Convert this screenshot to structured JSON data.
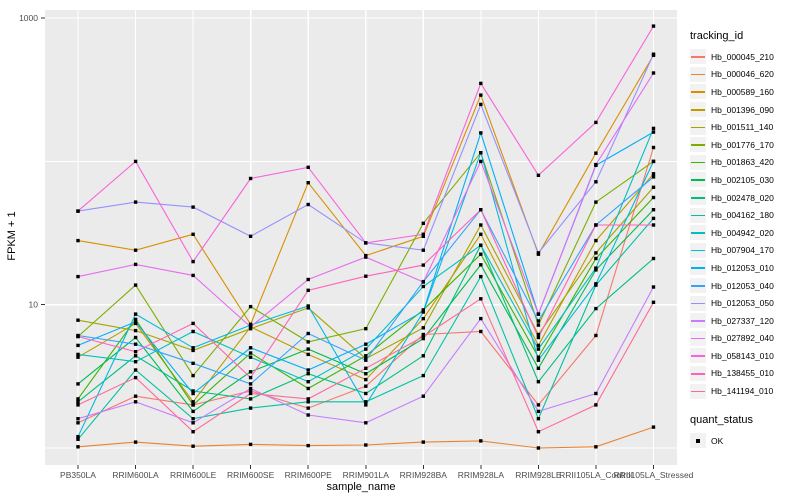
{
  "figure": {
    "y_axis_title": "FPKM + 1",
    "x_axis_title": "sample_name",
    "legend": {
      "tracking_title": "tracking_id",
      "quant_title": "quant_status",
      "quant_items": [
        {
          "label": "OK",
          "marker": "black-square"
        }
      ]
    }
  },
  "chart_data": {
    "type": "line",
    "title": "",
    "xlabel": "sample_name",
    "ylabel": "FPKM + 1",
    "y_scale": "log10",
    "y_tick_labels": [
      "1000",
      "10"
    ],
    "y_tick_values": [
      1000,
      10
    ],
    "y_gridline_values": [
      1000,
      100,
      10,
      1
    ],
    "ylim": [
      0.76,
      1140
    ],
    "grid": "white major gridlines on gray panel",
    "legend_position": "right",
    "point_marker": "small black square (quant_status = OK)",
    "panel_bg": "#EBEBEB",
    "gridline_color": "#FFFFFF",
    "x_categories": [
      "PB350LA",
      "RRIM600LA",
      "RRIM600LE",
      "RRIM600SE",
      "RRIM600PE",
      "RRIM901LA",
      "RRIM928BA",
      "RRIM928LA",
      "RRIM928LE",
      "RRII105LA_Control",
      "RRII105LA_Stressed"
    ],
    "series": [
      {
        "name": "Hb_000045_210",
        "color": "#F8766D",
        "values": [
          1.5,
          2.3,
          2.0,
          2.5,
          1.9,
          2.7,
          6.2,
          6.5,
          2.0,
          6.1,
          125
        ]
      },
      {
        "name": "Hb_000046_620",
        "color": "#EA8331",
        "values": [
          1.02,
          1.1,
          1.03,
          1.06,
          1.04,
          1.05,
          1.1,
          1.12,
          1.0,
          1.02,
          1.4
        ]
      },
      {
        "name": "Hb_000589_160",
        "color": "#D89000",
        "values": [
          28,
          24,
          31,
          7.3,
          71,
          22,
          30,
          290,
          22.5,
          114,
          550
        ]
      },
      {
        "name": "Hb_001396_090",
        "color": "#C09B00",
        "values": [
          4.3,
          7.4,
          2.1,
          7.0,
          4.5,
          3.0,
          8.0,
          31,
          5.2,
          28,
          82
        ]
      },
      {
        "name": "Hb_001511_140",
        "color": "#A3A500",
        "values": [
          7.8,
          6.6,
          4.8,
          6.8,
          9.5,
          4.2,
          6.9,
          36,
          6.2,
          23,
          66
        ]
      },
      {
        "name": "Hb_001776_170",
        "color": "#7CAE00",
        "values": [
          6.0,
          13.7,
          3.2,
          9.7,
          5.5,
          6.8,
          37,
          115,
          7.2,
          52,
          100
        ]
      },
      {
        "name": "Hb_001863_420",
        "color": "#39B600",
        "values": [
          2.2,
          7.9,
          2.0,
          4.6,
          2.6,
          4.4,
          9.2,
          22.5,
          4.3,
          21,
          56
        ]
      },
      {
        "name": "Hb_002105_030",
        "color": "#00BB4E",
        "values": [
          2.8,
          5.9,
          1.8,
          3.4,
          4.9,
          3.3,
          5.8,
          19,
          3.6,
          17.5,
          46
        ]
      },
      {
        "name": "Hb_002478_020",
        "color": "#00BF7D",
        "values": [
          2.1,
          4.4,
          2.5,
          2.2,
          3.3,
          2.4,
          4.4,
          26,
          2.9,
          9.4,
          21
        ]
      },
      {
        "name": "Hb_004162_180",
        "color": "#00C1A3",
        "values": [
          1.15,
          3.5,
          1.6,
          1.9,
          2.1,
          2.1,
          3.2,
          15.7,
          1.6,
          13.7,
          40
        ]
      },
      {
        "name": "Hb_004942_020",
        "color": "#00BFC4",
        "values": [
          4.5,
          4.0,
          6.5,
          4.3,
          2.9,
          4.9,
          13.4,
          26,
          4.9,
          18,
          170
        ]
      },
      {
        "name": "Hb_007904_170",
        "color": "#00BAE0",
        "values": [
          1.2,
          8.6,
          5.0,
          7.2,
          9.8,
          2.0,
          8.9,
          115,
          4.1,
          14,
          100
        ]
      },
      {
        "name": "Hb_012053_010",
        "color": "#00B0F6",
        "values": [
          5.2,
          7.6,
          2.4,
          5.0,
          3.5,
          5.3,
          9.0,
          158,
          8.6,
          94,
          160
        ]
      },
      {
        "name": "Hb_012053_040",
        "color": "#35A2FF",
        "values": [
          6.1,
          5.3,
          3.9,
          2.8,
          6.3,
          4.1,
          14.5,
          46,
          7.7,
          36,
          78
        ]
      },
      {
        "name": "Hb_012053_050",
        "color": "#9590FF",
        "values": [
          45,
          52,
          48,
          30,
          50,
          27,
          24,
          250,
          23,
          72,
          560
        ]
      },
      {
        "name": "Hb_027337_120",
        "color": "#C77CFF",
        "values": [
          1.6,
          2.1,
          1.5,
          2.6,
          1.7,
          1.5,
          2.3,
          8.0,
          1.8,
          2.4,
          13.3
        ]
      },
      {
        "name": "Hb_027892_040",
        "color": "#E76BF3",
        "values": [
          15.7,
          19.1,
          16,
          7.0,
          15,
          21.5,
          14.4,
          100,
          8.6,
          95,
          414
        ]
      },
      {
        "name": "Hb_058143_010",
        "color": "#FA62DB",
        "values": [
          45,
          100,
          20,
          76,
          91,
          27,
          31,
          350,
          80,
          187,
          880
        ]
      },
      {
        "name": "Hb_138455_010",
        "color": "#FF62BC",
        "values": [
          6.0,
          4.7,
          7.4,
          3.1,
          12.6,
          15.8,
          18.9,
          46,
          5.9,
          36,
          36
        ]
      },
      {
        "name": "Hb_141194_010",
        "color": "#FF6A98",
        "values": [
          2.0,
          3.1,
          1.3,
          2.4,
          2.2,
          3.6,
          6.0,
          11,
          1.3,
          2.0,
          10.4
        ]
      }
    ]
  }
}
